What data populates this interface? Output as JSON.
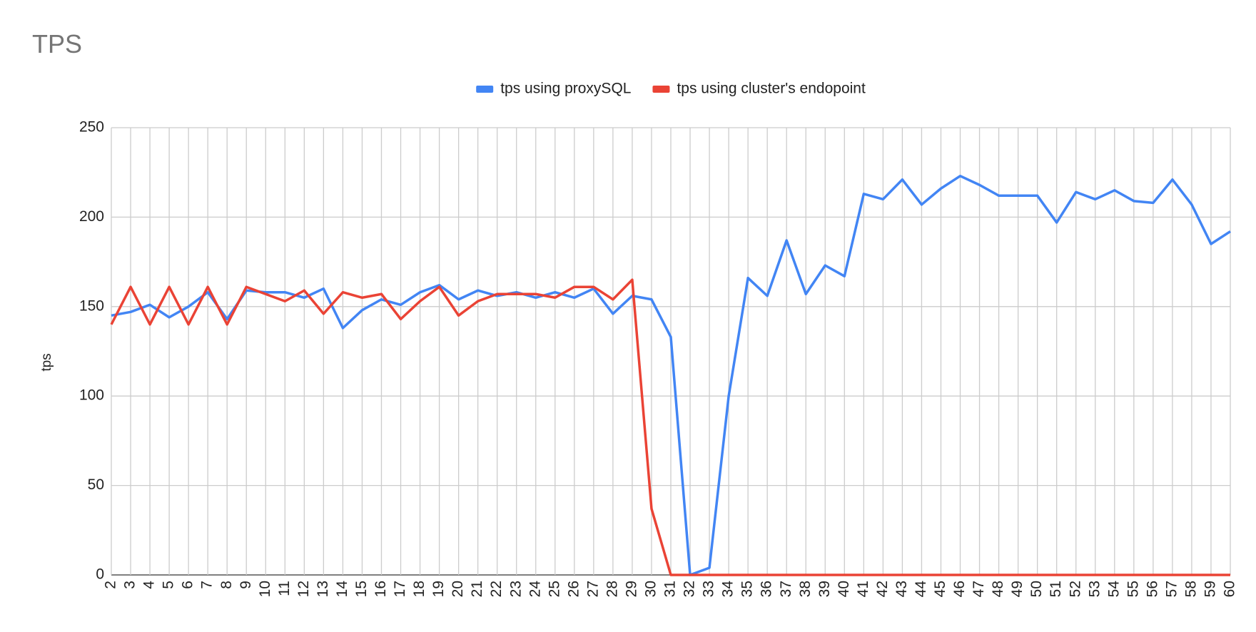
{
  "chart_data": {
    "type": "line",
    "title": "TPS",
    "y_label": "tps",
    "x": [
      2,
      3,
      4,
      5,
      6,
      7,
      8,
      9,
      10,
      11,
      12,
      13,
      14,
      15,
      16,
      17,
      18,
      19,
      20,
      21,
      22,
      23,
      24,
      25,
      26,
      27,
      28,
      29,
      30,
      31,
      32,
      33,
      34,
      35,
      36,
      37,
      38,
      39,
      40,
      41,
      42,
      43,
      44,
      45,
      46,
      47,
      48,
      49,
      50,
      51,
      52,
      53,
      54,
      55,
      56,
      57,
      58,
      59,
      60
    ],
    "xlim": [
      2,
      60
    ],
    "xticks": [
      2,
      3,
      4,
      5,
      6,
      7,
      8,
      9,
      10,
      11,
      12,
      13,
      14,
      15,
      16,
      17,
      18,
      19,
      20,
      21,
      22,
      23,
      24,
      25,
      26,
      27,
      28,
      29,
      30,
      31,
      32,
      33,
      34,
      35,
      36,
      37,
      38,
      39,
      40,
      41,
      42,
      43,
      44,
      45,
      46,
      47,
      48,
      49,
      50,
      51,
      52,
      53,
      54,
      55,
      56,
      57,
      58,
      59,
      60
    ],
    "ylim": [
      0,
      250
    ],
    "yticks": [
      0,
      50,
      100,
      150,
      200,
      250
    ],
    "grid": true,
    "legend": "top",
    "series": [
      {
        "name": "tps using proxySQL",
        "color": "#4285f4",
        "values": [
          145,
          147,
          151,
          144,
          150,
          158,
          143,
          159,
          158,
          158,
          155,
          160,
          138,
          148,
          154,
          151,
          158,
          162,
          154,
          159,
          156,
          158,
          155,
          158,
          155,
          160,
          146,
          156,
          154,
          133,
          0,
          4,
          100,
          166,
          156,
          187,
          157,
          173,
          167,
          213,
          210,
          221,
          207,
          216,
          223,
          218,
          212,
          212,
          212,
          197,
          214,
          210,
          215,
          209,
          208,
          221,
          207,
          185,
          192
        ]
      },
      {
        "name": "tps using cluster's endopoint",
        "color": "#ea4335",
        "values": [
          140,
          161,
          140,
          161,
          140,
          161,
          140,
          161,
          157,
          153,
          159,
          146,
          158,
          155,
          157,
          143,
          153,
          161,
          145,
          153,
          157,
          157,
          157,
          155,
          161,
          161,
          154,
          165,
          37,
          0,
          0,
          0,
          0,
          0,
          0,
          0,
          0,
          0,
          0,
          0,
          0,
          0,
          0,
          0,
          0,
          0,
          0,
          0,
          0,
          0,
          0,
          0,
          0,
          0,
          0,
          0,
          0,
          0,
          0
        ]
      }
    ]
  }
}
